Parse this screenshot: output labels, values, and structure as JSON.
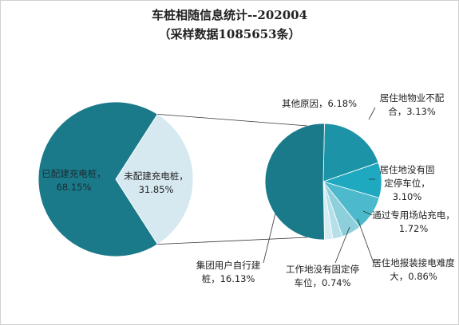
{
  "chart_data": {
    "type": "pie-of-pie",
    "title": "车桩相随信息统计--202004",
    "subtitle": "（采样数据1085653条）",
    "separator": "，",
    "categories": [
      "已配建充电桩",
      "未配建充电桩"
    ],
    "values": [
      68.15,
      31.85
    ],
    "value_labels": [
      "68.15%",
      "31.85%"
    ],
    "colors": [
      "#1a7a8a",
      "#d6e9f0"
    ],
    "secondary": {
      "categories": [
        "其他原因",
        "居住地物业不配合",
        "居住地没有固定停车位",
        "通过专用场站充电",
        "居住地报装接电难度大",
        "工作地没有固定停车位",
        "集团用户自行建桩"
      ],
      "values": [
        6.18,
        3.13,
        3.1,
        1.72,
        0.86,
        0.74,
        16.13
      ],
      "value_labels": [
        "6.18%",
        "3.13%",
        "3.10%",
        "1.72%",
        "0.86%",
        "0.74%",
        "16.13%"
      ],
      "colors": [
        "#1d93a8",
        "#1fa9c0",
        "#4cb9cc",
        "#8dcfdb",
        "#b6e0e8",
        "#d4edf2",
        "#1a7a8a"
      ]
    }
  }
}
